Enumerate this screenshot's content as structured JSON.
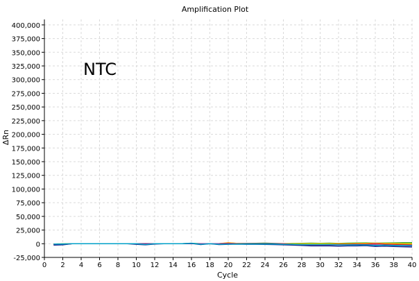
{
  "chart_data": {
    "type": "line",
    "title": "Amplification Plot",
    "xlabel": "Cycle",
    "ylabel": "ΔRn",
    "annotation": "NTC",
    "xlim": [
      0,
      40
    ],
    "ylim": [
      -25000,
      410000
    ],
    "grid": true,
    "x_ticks": [
      0,
      2,
      4,
      6,
      8,
      10,
      12,
      14,
      16,
      18,
      20,
      22,
      24,
      26,
      28,
      30,
      32,
      34,
      36,
      38,
      40
    ],
    "x_tick_labels": [
      "0",
      "2",
      "4",
      "6",
      "8",
      "10",
      "12",
      "14",
      "16",
      "18",
      "20",
      "22",
      "24",
      "26",
      "28",
      "30",
      "32",
      "34",
      "36",
      "38",
      "40"
    ],
    "y_ticks": [
      -25000,
      0,
      25000,
      50000,
      75000,
      100000,
      125000,
      150000,
      175000,
      200000,
      225000,
      250000,
      275000,
      300000,
      325000,
      350000,
      375000,
      400000
    ],
    "y_tick_labels": [
      "-25,000",
      "0",
      "25,000",
      "50,000",
      "75,000",
      "100,000",
      "125,000",
      "150,000",
      "175,000",
      "200,000",
      "225,000",
      "250,000",
      "275,000",
      "300,000",
      "325,000",
      "350,000",
      "375,000",
      "400,000"
    ],
    "x": [
      1,
      2,
      3,
      4,
      5,
      6,
      7,
      8,
      9,
      10,
      11,
      12,
      13,
      14,
      15,
      16,
      17,
      18,
      19,
      20,
      21,
      22,
      23,
      24,
      25,
      26,
      27,
      28,
      29,
      30,
      31,
      32,
      33,
      34,
      35,
      36,
      37,
      38,
      39,
      40
    ],
    "series": [
      {
        "color": "#1b9e1b",
        "values": [
          -500,
          -300,
          0,
          0,
          0,
          0,
          0,
          0,
          0,
          0,
          200,
          0,
          0,
          0,
          0,
          800,
          0,
          0,
          0,
          1200,
          500,
          500,
          800,
          1000,
          500,
          0,
          500,
          800,
          1000,
          800,
          1000,
          500,
          1000,
          1200,
          1500,
          1000,
          1200,
          1500,
          1800,
          1800
        ]
      },
      {
        "color": "#ffd400",
        "values": [
          -1000,
          -800,
          0,
          0,
          0,
          0,
          0,
          0,
          0,
          0,
          0,
          0,
          0,
          0,
          0,
          0,
          0,
          0,
          0,
          1800,
          500,
          0,
          0,
          0,
          0,
          0,
          0,
          0,
          0,
          0,
          0,
          0,
          0,
          500,
          800,
          1000,
          800,
          500,
          300,
          0
        ]
      },
      {
        "color": "#d62728",
        "values": [
          -1500,
          -1000,
          0,
          0,
          0,
          0,
          0,
          0,
          0,
          0,
          0,
          0,
          0,
          0,
          0,
          0,
          0,
          0,
          0,
          1000,
          0,
          0,
          0,
          0,
          0,
          0,
          -1000,
          -1500,
          -2000,
          -2000,
          -1500,
          -1000,
          -1000,
          -500,
          -500,
          500,
          -500,
          -1000,
          -1500,
          -2000
        ]
      },
      {
        "color": "#9b1f8c",
        "values": [
          -2000,
          -1500,
          0,
          0,
          0,
          0,
          0,
          0,
          0,
          0,
          0,
          0,
          0,
          0,
          0,
          0,
          0,
          0,
          0,
          0,
          0,
          0,
          0,
          0,
          0,
          -1000,
          -2000,
          -2500,
          -3000,
          -3000,
          -2500,
          -2000,
          -2000,
          -1500,
          -2000,
          -2000,
          -2500,
          -3000,
          -3500,
          -4000
        ]
      },
      {
        "color": "#1f2a8c",
        "values": [
          -2500,
          -2000,
          0,
          0,
          0,
          0,
          0,
          0,
          0,
          -1000,
          -2000,
          -500,
          0,
          0,
          0,
          500,
          -1500,
          0,
          -1500,
          -1000,
          -800,
          -1000,
          -1000,
          -1200,
          -1500,
          -2000,
          -2500,
          -3000,
          -4000,
          -4000,
          -4000,
          -4500,
          -4000,
          -4000,
          -3500,
          -5000,
          -4500,
          -5000,
          -5500,
          -6000
        ]
      },
      {
        "color": "#00a0c8",
        "values": [
          -500,
          -500,
          0,
          0,
          0,
          0,
          0,
          0,
          0,
          0,
          -1500,
          0,
          0,
          0,
          0,
          1000,
          -1000,
          0,
          -1000,
          -500,
          -500,
          -500,
          -500,
          -500,
          -500,
          -1000,
          -1000,
          -1500,
          -1500,
          -1500,
          -1500,
          -2000,
          -2000,
          -2000,
          -2000,
          -3000,
          -2500,
          -3000,
          -3000,
          -3000
        ]
      }
    ]
  }
}
